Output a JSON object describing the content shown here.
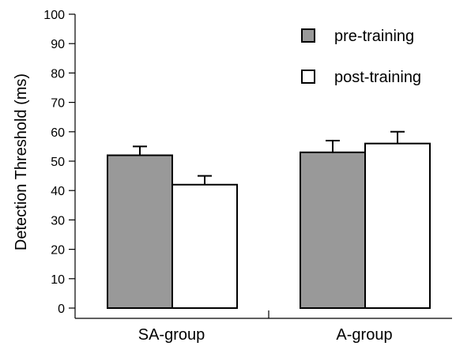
{
  "chart_data": {
    "type": "bar",
    "title": "",
    "xlabel": "",
    "ylabel": "Detection Threshold (ms)",
    "ylim": [
      0,
      100
    ],
    "yticks": [
      0,
      10,
      20,
      30,
      40,
      50,
      60,
      70,
      80,
      90,
      100
    ],
    "categories": [
      "SA-group",
      "A-group"
    ],
    "series": [
      {
        "name": "pre-training",
        "values": [
          52,
          53
        ],
        "errors": [
          3,
          4
        ],
        "color": "#999999"
      },
      {
        "name": "post-training",
        "values": [
          42,
          56
        ],
        "errors": [
          3,
          4
        ],
        "color": "#ffffff"
      }
    ],
    "legend_position": "top-right",
    "grid": false
  }
}
